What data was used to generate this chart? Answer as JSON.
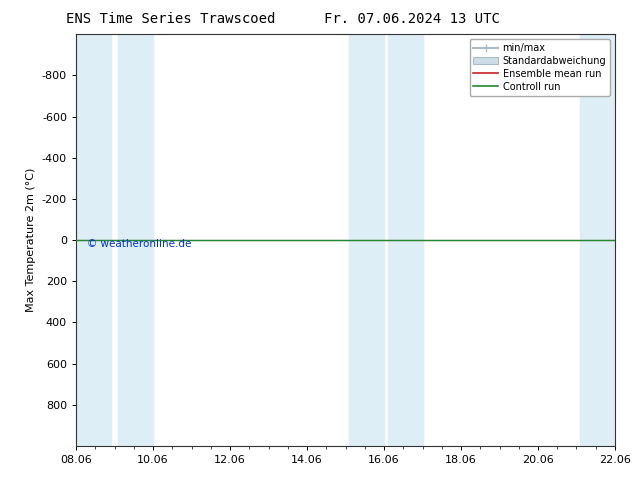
{
  "title_left": "ENS Time Series Trawscoed",
  "title_right": "Fr. 07.06.2024 13 UTC",
  "ylabel": "Max Temperature 2m (°C)",
  "ylim_inverted": [
    1000,
    -1000
  ],
  "yticks": [
    -800,
    -600,
    -400,
    -200,
    0,
    200,
    400,
    600,
    800
  ],
  "xlim": [
    0,
    14
  ],
  "xtick_labels": [
    "08.06",
    "10.06",
    "12.06",
    "14.06",
    "16.06",
    "18.06",
    "20.06",
    "22.06"
  ],
  "xtick_positions": [
    0,
    2,
    4,
    6,
    8,
    10,
    12,
    14
  ],
  "shaded_columns": [
    [
      0.0,
      0.9
    ],
    [
      1.1,
      2.0
    ],
    [
      7.1,
      8.0
    ],
    [
      8.1,
      9.0
    ],
    [
      13.1,
      14.0
    ]
  ],
  "shaded_color": "#ddeef7",
  "green_line_y": 0,
  "green_line_color": "#228833",
  "red_line_color": "#cc2222",
  "background_color": "#ffffff",
  "plot_bg_color": "#ffffff",
  "copyright_text": "© weatheronline.de",
  "copyright_color": "#0033cc",
  "legend_labels": [
    "min/max",
    "Standardabweichung",
    "Ensemble mean run",
    "Controll run"
  ],
  "title_fontsize": 10,
  "axis_fontsize": 8,
  "ylabel_fontsize": 8
}
